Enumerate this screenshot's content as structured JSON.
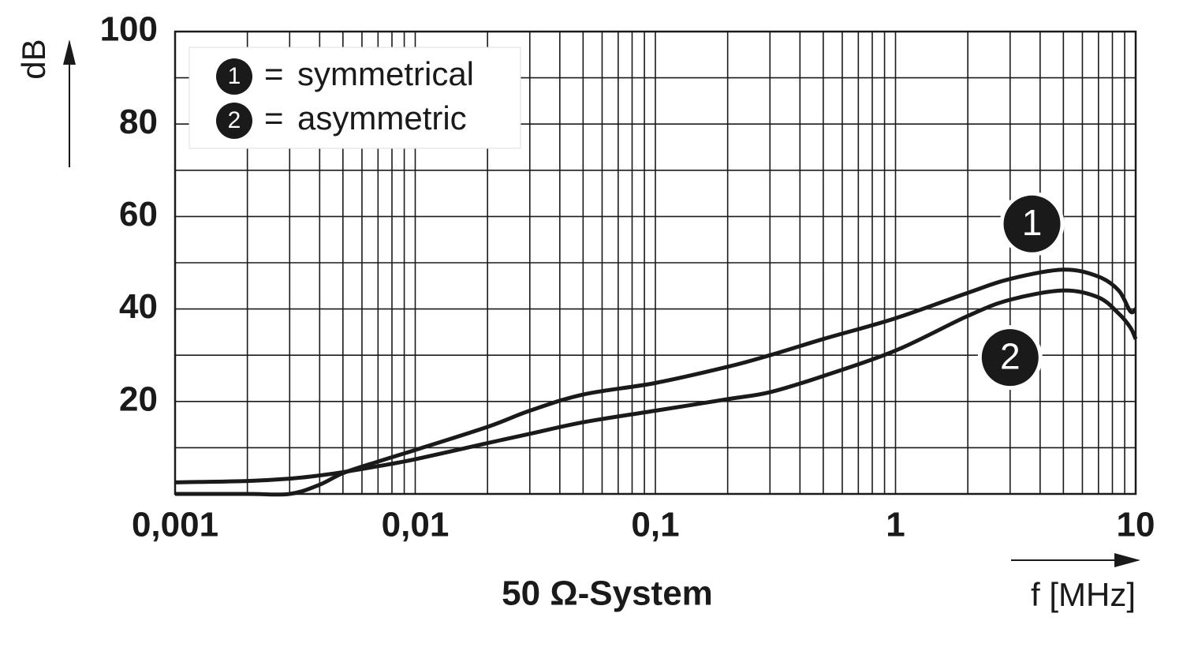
{
  "chart_data": {
    "type": "line",
    "y_label": "dB",
    "x_label": "f [MHz]",
    "caption": "50 Ω-System",
    "log_x": true,
    "grid": true,
    "legend_separator": "=",
    "x": [
      0.001,
      0.002,
      0.003,
      0.004,
      0.005,
      0.007,
      0.01,
      0.02,
      0.03,
      0.05,
      0.1,
      0.2,
      0.3,
      0.5,
      1,
      2,
      3,
      5,
      7,
      8.5,
      9.5,
      10
    ],
    "series": [
      {
        "name": "symmetrical",
        "marker": "1",
        "color": "#1a1a1a",
        "label_at": [
          3.7,
          58.4
        ],
        "values": [
          0,
          0,
          0,
          2,
          4.5,
          7,
          9.5,
          14.5,
          18,
          21.5,
          24,
          27.5,
          30,
          33.5,
          38,
          43.5,
          46.5,
          48.5,
          47,
          44,
          39.5,
          40
        ]
      },
      {
        "name": "asymmetric",
        "marker": "2",
        "color": "#1a1a1a",
        "label_at": [
          3.0,
          29.5
        ],
        "values": [
          2.5,
          2.8,
          3.3,
          4,
          4.7,
          6,
          7.5,
          11,
          13,
          15.5,
          18,
          20.5,
          22,
          25.5,
          31,
          38.5,
          42,
          44,
          42.5,
          39,
          36,
          33.5
        ]
      }
    ],
    "xlim": [
      0.001,
      10
    ],
    "xticks": [
      {
        "value": 0.001,
        "label": "0,001"
      },
      {
        "value": 0.01,
        "label": "0,01"
      },
      {
        "value": 0.1,
        "label": "0,1"
      },
      1,
      10
    ],
    "ylim": [
      0,
      100
    ],
    "yticks": [
      20,
      40,
      60,
      80,
      100
    ],
    "y_minor_grid": [
      10,
      30,
      50,
      70,
      90
    ]
  }
}
